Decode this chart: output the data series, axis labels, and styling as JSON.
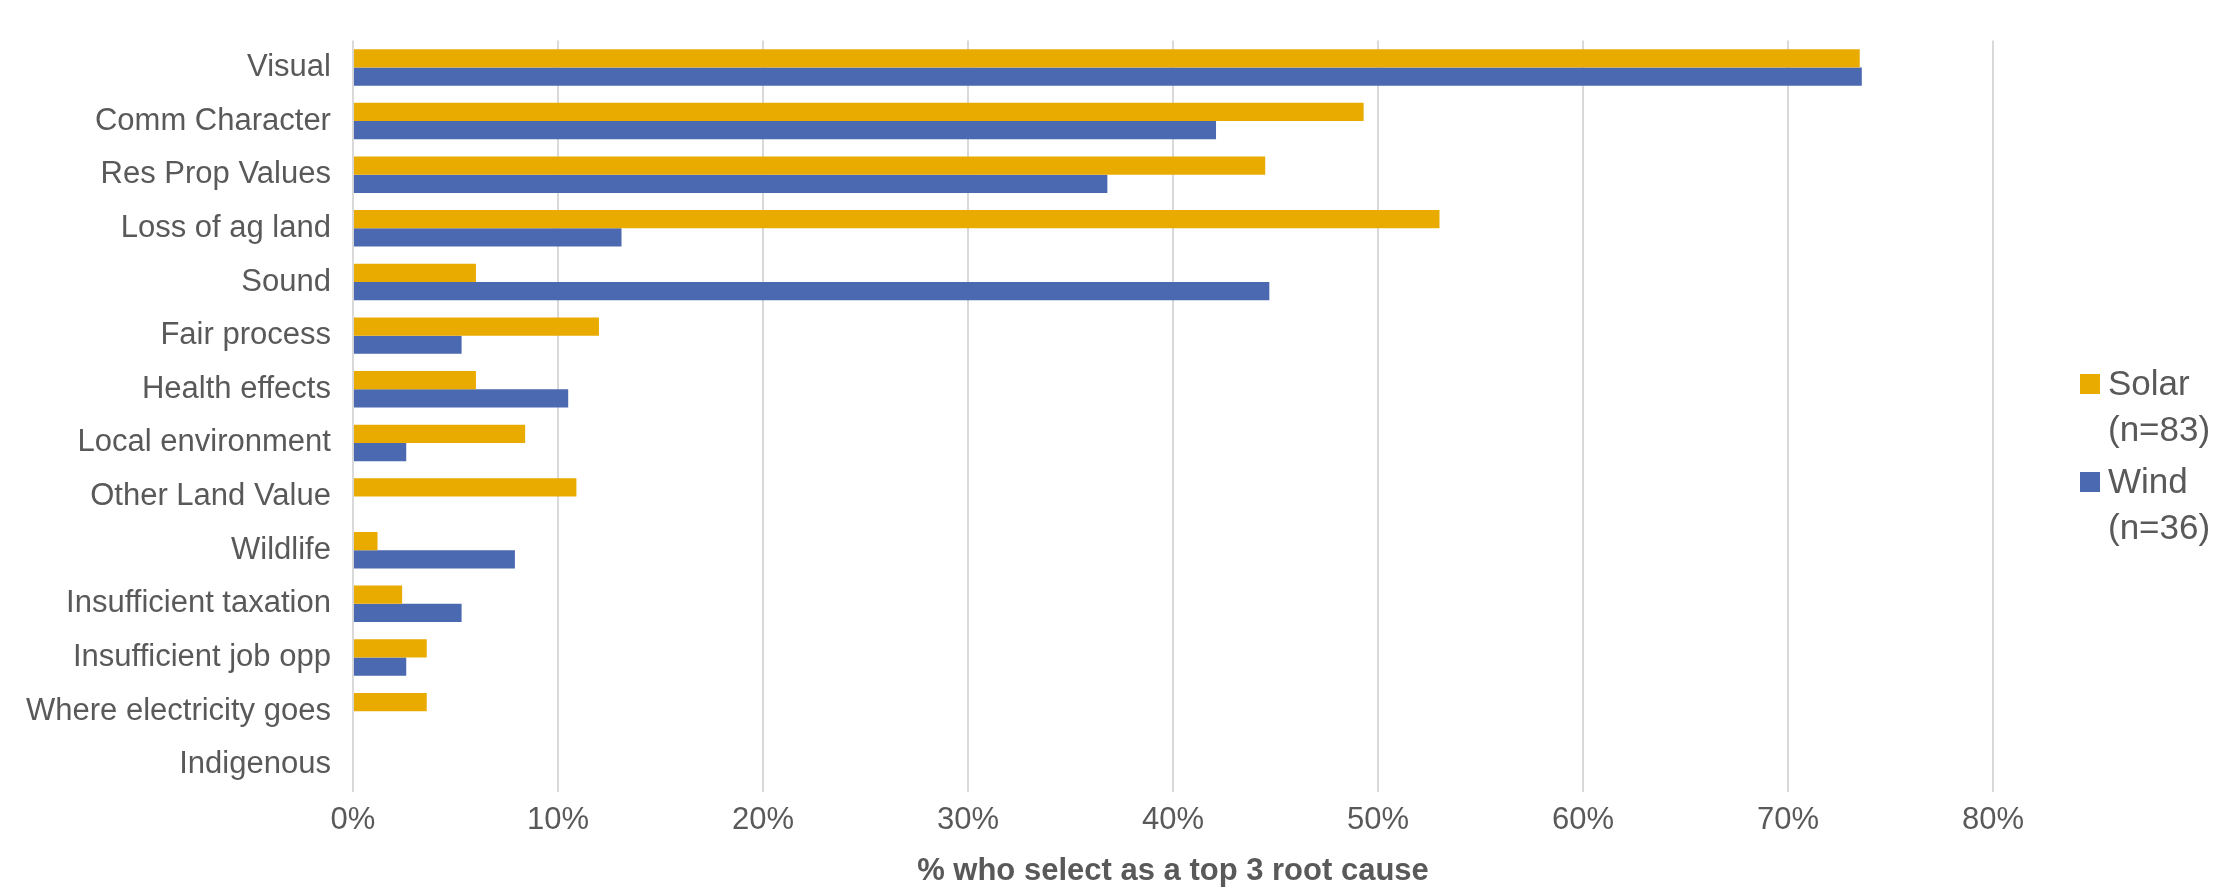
{
  "chart_data": {
    "type": "bar",
    "orientation": "horizontal",
    "xlabel": "% who select as a top 3 root cause",
    "categories": [
      "Visual",
      "Comm Character",
      "Res Prop Values",
      "Loss of ag land",
      "Sound",
      "Fair process",
      "Health effects",
      "Local environment",
      "Other Land Value",
      "Wildlife",
      "Insufficient taxation",
      "Insufficient job opp",
      "Where electricity goes",
      "Indigenous"
    ],
    "series": [
      {
        "name": "Solar (n=83)",
        "color": "#eaab00",
        "values": [
          73.5,
          49.3,
          44.5,
          53.0,
          6.0,
          12.0,
          6.0,
          8.4,
          10.9,
          1.2,
          2.4,
          3.6,
          3.6,
          0
        ]
      },
      {
        "name": "Wind (n=36)",
        "color": "#4a69b0",
        "values": [
          73.6,
          42.1,
          36.8,
          13.1,
          44.7,
          5.3,
          10.5,
          2.6,
          0,
          7.9,
          5.3,
          2.6,
          0,
          0
        ]
      }
    ],
    "xlim": [
      0,
      80
    ],
    "xticks": [
      {
        "value": 0,
        "label": "0%"
      },
      {
        "value": 10,
        "label": "10%"
      },
      {
        "value": 20,
        "label": "20%"
      },
      {
        "value": 30,
        "label": "30%"
      },
      {
        "value": 40,
        "label": "40%"
      },
      {
        "value": 50,
        "label": "50%"
      },
      {
        "value": 60,
        "label": "60%"
      },
      {
        "value": 70,
        "label": "70%"
      },
      {
        "value": 80,
        "label": "80%"
      }
    ],
    "grid": "x",
    "legend": "right"
  }
}
